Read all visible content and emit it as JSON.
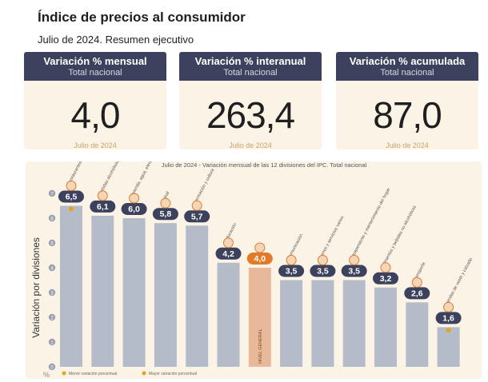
{
  "header": {
    "title": "Índice de precios al consumidor",
    "subtitle": "Julio de 2024. Resumen ejecutivo"
  },
  "kpis": [
    {
      "title": "Variación % mensual",
      "subtitle": "Total nacional",
      "value": "4,0",
      "footer": "Julio de 2024"
    },
    {
      "title": "Variación % interanual",
      "subtitle": "Total nacional",
      "value": "263,4",
      "footer": "Julio de 2024"
    },
    {
      "title": "Variación % acumulada",
      "subtitle": "Total nacional",
      "value": "87,0",
      "footer": "Julio de 2024"
    }
  ],
  "colors": {
    "header_bg": "#3c425d",
    "panel_bg": "#fbf3e6",
    "bar": "#b4bbc9",
    "bar_general": "#e8b89a",
    "badge": "#3c425d",
    "badge_general": "#e07b2a",
    "marker_min": "#e8a317",
    "marker_max": "#e8a317"
  },
  "chart_data": {
    "type": "bar",
    "title": "Julio de 2024 - Variación mensual de las 12 divisiones del IPC. Total nacional",
    "ylabel": "Variación por divisiones",
    "yunit": "%",
    "ylim": [
      0,
      7
    ],
    "yticks": [
      0,
      1,
      2,
      3,
      4,
      5,
      6,
      7
    ],
    "categories": [
      "Restaurantes y hoteles",
      "Bebidas alcohólicas y tabaco",
      "Vivienda, agua, electricidad, gas y otros combustibles",
      "Salud",
      "Recreación y cultura",
      "Educación",
      "Nivel general",
      "Comunicación",
      "Bienes y servicios varios",
      "Equipamiento y mantenimiento del hogar",
      "Alimentos y bebidas no alcohólicas",
      "Transporte",
      "Prendas de vestir y calzado"
    ],
    "values": [
      6.5,
      6.1,
      6.0,
      5.8,
      5.7,
      4.2,
      4.0,
      3.5,
      3.5,
      3.5,
      3.2,
      2.6,
      1.6
    ],
    "value_labels": [
      "6,5",
      "6,1",
      "6,0",
      "5,8",
      "5,7",
      "4,2",
      "4,0",
      "3,5",
      "3,5",
      "3,5",
      "3,2",
      "2,6",
      "1,6"
    ],
    "general_index": 6,
    "general_bar_label": "NIVEL GENERAL",
    "legend": [
      {
        "label": "Menor variación porcentual"
      },
      {
        "label": "Mayor variación porcentual"
      }
    ],
    "grid": false
  }
}
